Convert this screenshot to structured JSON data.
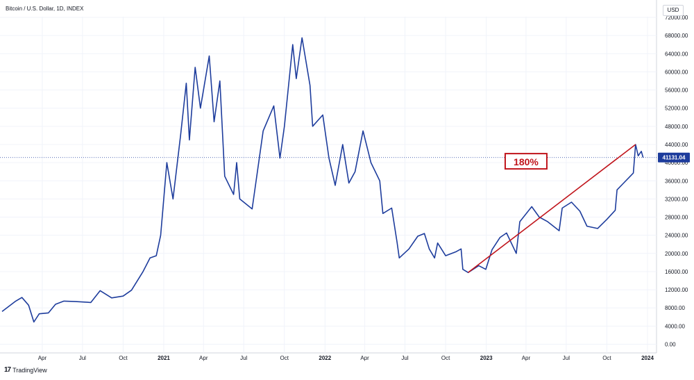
{
  "header": {
    "title": "Bitcoin / U.S. Dollar, 1D, INDEX",
    "currency": "USD"
  },
  "footer": {
    "brand": "TradingView",
    "logo_glyph": "17"
  },
  "colors": {
    "price_line": "#1d3c9c",
    "trend_line": "#c0141b",
    "grid": "#f0f3fa",
    "axis_text": "#131722",
    "price_label_bg": "#1d3c9c"
  },
  "chart_data": {
    "type": "line",
    "xlabel": "",
    "ylabel": "",
    "x_ticks": [
      "Apr",
      "Jul",
      "Oct",
      "2021",
      "Apr",
      "Jul",
      "Oct",
      "2022",
      "Apr",
      "Jul",
      "Oct",
      "2023",
      "Apr",
      "Jul",
      "Oct",
      "2024"
    ],
    "x_range": [
      "2020-01-01",
      "2024-01-12"
    ],
    "y_ticks": [
      "0.00",
      "4000.00",
      "8000.00",
      "12000.00",
      "16000.00",
      "20000.00",
      "24000.00",
      "28000.00",
      "32000.00",
      "36000.00",
      "40000.00",
      "44000.00",
      "48000.00",
      "52000.00",
      "56000.00",
      "60000.00",
      "64000.00",
      "68000.00",
      "72000.00"
    ],
    "ylim": [
      0,
      72000
    ],
    "grid": true,
    "series": [
      {
        "values": [
          [
            "2020-01-01",
            7200
          ],
          [
            "2020-02-01",
            9500
          ],
          [
            "2020-02-15",
            10300
          ],
          [
            "2020-03-01",
            8600
          ],
          [
            "2020-03-13",
            4900
          ],
          [
            "2020-03-25",
            6700
          ],
          [
            "2020-04-15",
            6900
          ],
          [
            "2020-05-01",
            8800
          ],
          [
            "2020-05-20",
            9500
          ],
          [
            "2020-06-15",
            9400
          ],
          [
            "2020-07-20",
            9200
          ],
          [
            "2020-08-10",
            11800
          ],
          [
            "2020-09-05",
            10200
          ],
          [
            "2020-10-01",
            10600
          ],
          [
            "2020-10-20",
            11900
          ],
          [
            "2020-11-15",
            16000
          ],
          [
            "2020-12-01",
            19000
          ],
          [
            "2020-12-15",
            19500
          ],
          [
            "2020-12-25",
            24000
          ],
          [
            "2021-01-08",
            40000
          ],
          [
            "2021-01-22",
            32000
          ],
          [
            "2021-02-08",
            46000
          ],
          [
            "2021-02-21",
            57500
          ],
          [
            "2021-02-28",
            45000
          ],
          [
            "2021-03-13",
            61000
          ],
          [
            "2021-03-25",
            52000
          ],
          [
            "2021-04-14",
            63500
          ],
          [
            "2021-04-25",
            49000
          ],
          [
            "2021-05-08",
            58000
          ],
          [
            "2021-05-19",
            37000
          ],
          [
            "2021-06-08",
            33000
          ],
          [
            "2021-06-15",
            40000
          ],
          [
            "2021-06-22",
            32000
          ],
          [
            "2021-07-20",
            29800
          ],
          [
            "2021-08-14",
            47000
          ],
          [
            "2021-09-07",
            52500
          ],
          [
            "2021-09-21",
            41000
          ],
          [
            "2021-10-01",
            48000
          ],
          [
            "2021-10-20",
            66000
          ],
          [
            "2021-10-28",
            58500
          ],
          [
            "2021-11-10",
            67500
          ],
          [
            "2021-11-28",
            57000
          ],
          [
            "2021-12-04",
            48000
          ],
          [
            "2021-12-27",
            50500
          ],
          [
            "2022-01-10",
            41000
          ],
          [
            "2022-01-24",
            35000
          ],
          [
            "2022-02-10",
            44000
          ],
          [
            "2022-02-24",
            35500
          ],
          [
            "2022-03-10",
            38000
          ],
          [
            "2022-03-28",
            47000
          ],
          [
            "2022-04-15",
            40000
          ],
          [
            "2022-05-05",
            36000
          ],
          [
            "2022-05-12",
            28800
          ],
          [
            "2022-06-01",
            30000
          ],
          [
            "2022-06-13",
            22500
          ],
          [
            "2022-06-18",
            19000
          ],
          [
            "2022-07-10",
            21000
          ],
          [
            "2022-07-30",
            23800
          ],
          [
            "2022-08-14",
            24400
          ],
          [
            "2022-08-25",
            21000
          ],
          [
            "2022-09-06",
            19000
          ],
          [
            "2022-09-13",
            22300
          ],
          [
            "2022-10-01",
            19500
          ],
          [
            "2022-10-25",
            20400
          ],
          [
            "2022-11-05",
            21000
          ],
          [
            "2022-11-09",
            16500
          ],
          [
            "2022-11-21",
            15800
          ],
          [
            "2022-12-15",
            17300
          ],
          [
            "2022-12-31",
            16500
          ],
          [
            "2023-01-14",
            20800
          ],
          [
            "2023-02-01",
            23500
          ],
          [
            "2023-02-16",
            24500
          ],
          [
            "2023-03-10",
            20000
          ],
          [
            "2023-03-18",
            27000
          ],
          [
            "2023-04-14",
            30300
          ],
          [
            "2023-05-01",
            28000
          ],
          [
            "2023-05-20",
            27000
          ],
          [
            "2023-06-15",
            25000
          ],
          [
            "2023-06-22",
            30000
          ],
          [
            "2023-07-13",
            31300
          ],
          [
            "2023-08-01",
            29300
          ],
          [
            "2023-08-17",
            26000
          ],
          [
            "2023-09-10",
            25500
          ],
          [
            "2023-10-01",
            27500
          ],
          [
            "2023-10-20",
            29500
          ],
          [
            "2023-10-24",
            34000
          ],
          [
            "2023-11-08",
            35500
          ],
          [
            "2023-11-30",
            37700
          ],
          [
            "2023-12-05",
            44000
          ],
          [
            "2023-12-11",
            41500
          ],
          [
            "2023-12-18",
            42500
          ],
          [
            "2023-12-22",
            41131
          ]
        ]
      }
    ],
    "trend_line": {
      "from": [
        "2022-11-21",
        15800
      ],
      "to": [
        "2023-12-05",
        44000
      ]
    },
    "annotations": [
      {
        "text": "180%",
        "at": [
          "2023-04-01",
          40000
        ]
      }
    ],
    "price_label": {
      "value": 41131.04,
      "text": "41131.04"
    }
  }
}
